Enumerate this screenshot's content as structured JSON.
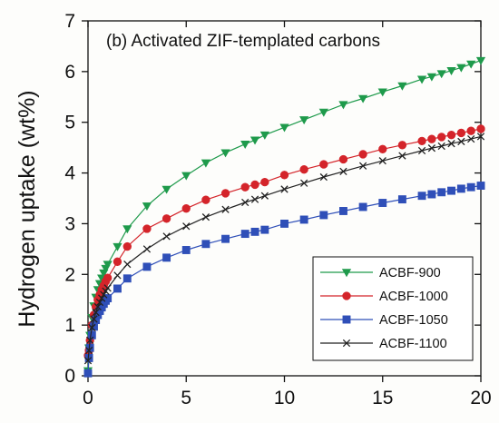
{
  "chart_data": {
    "type": "line",
    "title": "(b) Activated ZIF-templated carbons",
    "xlabel": "",
    "ylabel": "Hydrogen uptake (wt%)",
    "xlim": [
      0,
      20
    ],
    "ylim": [
      0,
      7
    ],
    "xticks": [
      0,
      5,
      10,
      15,
      20
    ],
    "yticks": [
      0,
      1,
      2,
      3,
      4,
      5,
      6,
      7
    ],
    "grid": false,
    "legend_position": "bottom-right",
    "series": [
      {
        "name": "ACBF-900",
        "color": "#1e9a4b",
        "marker": "triangle-down",
        "x": [
          0.0,
          0.05,
          0.1,
          0.2,
          0.3,
          0.4,
          0.5,
          0.6,
          0.7,
          0.8,
          0.9,
          1.0,
          1.5,
          2.0,
          3.0,
          4.0,
          5.0,
          6.0,
          7.0,
          8.0,
          8.5,
          9.0,
          10.0,
          11.0,
          12.0,
          13.0,
          14.0,
          15.0,
          16.0,
          17.0,
          17.5,
          18.0,
          18.5,
          19.0,
          19.5,
          20.0
        ],
        "y": [
          0.1,
          0.55,
          0.8,
          1.15,
          1.38,
          1.55,
          1.7,
          1.82,
          1.93,
          2.03,
          2.12,
          2.2,
          2.55,
          2.9,
          3.35,
          3.68,
          3.95,
          4.2,
          4.4,
          4.57,
          4.65,
          4.75,
          4.9,
          5.05,
          5.2,
          5.35,
          5.47,
          5.6,
          5.72,
          5.85,
          5.9,
          5.96,
          6.02,
          6.08,
          6.15,
          6.22
        ]
      },
      {
        "name": "ACBF-1000",
        "color": "#d4242a",
        "marker": "circle",
        "x": [
          0.0,
          0.05,
          0.1,
          0.2,
          0.3,
          0.4,
          0.5,
          0.6,
          0.7,
          0.8,
          0.9,
          1.0,
          1.5,
          2.0,
          3.0,
          4.0,
          5.0,
          6.0,
          7.0,
          8.0,
          8.5,
          9.0,
          10.0,
          11.0,
          12.0,
          13.0,
          14.0,
          15.0,
          16.0,
          17.0,
          17.5,
          18.0,
          18.5,
          19.0,
          19.5,
          20.0
        ],
        "y": [
          0.4,
          0.5,
          0.7,
          1.0,
          1.2,
          1.36,
          1.5,
          1.6,
          1.7,
          1.78,
          1.86,
          1.93,
          2.25,
          2.55,
          2.9,
          3.1,
          3.3,
          3.47,
          3.6,
          3.72,
          3.77,
          3.82,
          3.96,
          4.07,
          4.17,
          4.27,
          4.37,
          4.47,
          4.55,
          4.63,
          4.67,
          4.71,
          4.75,
          4.79,
          4.83,
          4.87
        ]
      },
      {
        "name": "ACBF-1050",
        "color": "#2f4fb8",
        "marker": "square",
        "x": [
          0.0,
          0.05,
          0.1,
          0.2,
          0.3,
          0.4,
          0.5,
          0.6,
          0.7,
          0.8,
          0.9,
          1.0,
          1.5,
          2.0,
          3.0,
          4.0,
          5.0,
          6.0,
          7.0,
          8.0,
          8.5,
          9.0,
          10.0,
          11.0,
          12.0,
          13.0,
          14.0,
          15.0,
          16.0,
          17.0,
          17.5,
          18.0,
          18.5,
          19.0,
          19.5,
          20.0
        ],
        "y": [
          0.05,
          0.35,
          0.55,
          0.8,
          0.97,
          1.1,
          1.2,
          1.28,
          1.35,
          1.42,
          1.48,
          1.53,
          1.72,
          1.92,
          2.15,
          2.33,
          2.48,
          2.6,
          2.7,
          2.8,
          2.84,
          2.88,
          3.0,
          3.08,
          3.17,
          3.25,
          3.33,
          3.41,
          3.48,
          3.55,
          3.58,
          3.62,
          3.65,
          3.69,
          3.72,
          3.75
        ]
      },
      {
        "name": "ACBF-1100",
        "color": "#222222",
        "marker": "x",
        "x": [
          0.0,
          0.05,
          0.1,
          0.2,
          0.3,
          0.4,
          0.5,
          0.6,
          0.7,
          0.8,
          0.9,
          1.0,
          1.5,
          2.0,
          3.0,
          4.0,
          5.0,
          6.0,
          7.0,
          8.0,
          8.5,
          9.0,
          10.0,
          11.0,
          12.0,
          13.0,
          14.0,
          15.0,
          16.0,
          17.0,
          17.5,
          18.0,
          18.5,
          19.0,
          19.5,
          20.0
        ],
        "y": [
          0.3,
          0.5,
          0.7,
          0.95,
          1.12,
          1.25,
          1.36,
          1.45,
          1.53,
          1.6,
          1.67,
          1.73,
          1.98,
          2.2,
          2.5,
          2.75,
          2.95,
          3.13,
          3.28,
          3.42,
          3.48,
          3.55,
          3.68,
          3.8,
          3.92,
          4.03,
          4.14,
          4.24,
          4.34,
          4.44,
          4.49,
          4.53,
          4.58,
          4.62,
          4.67,
          4.72
        ]
      }
    ]
  }
}
